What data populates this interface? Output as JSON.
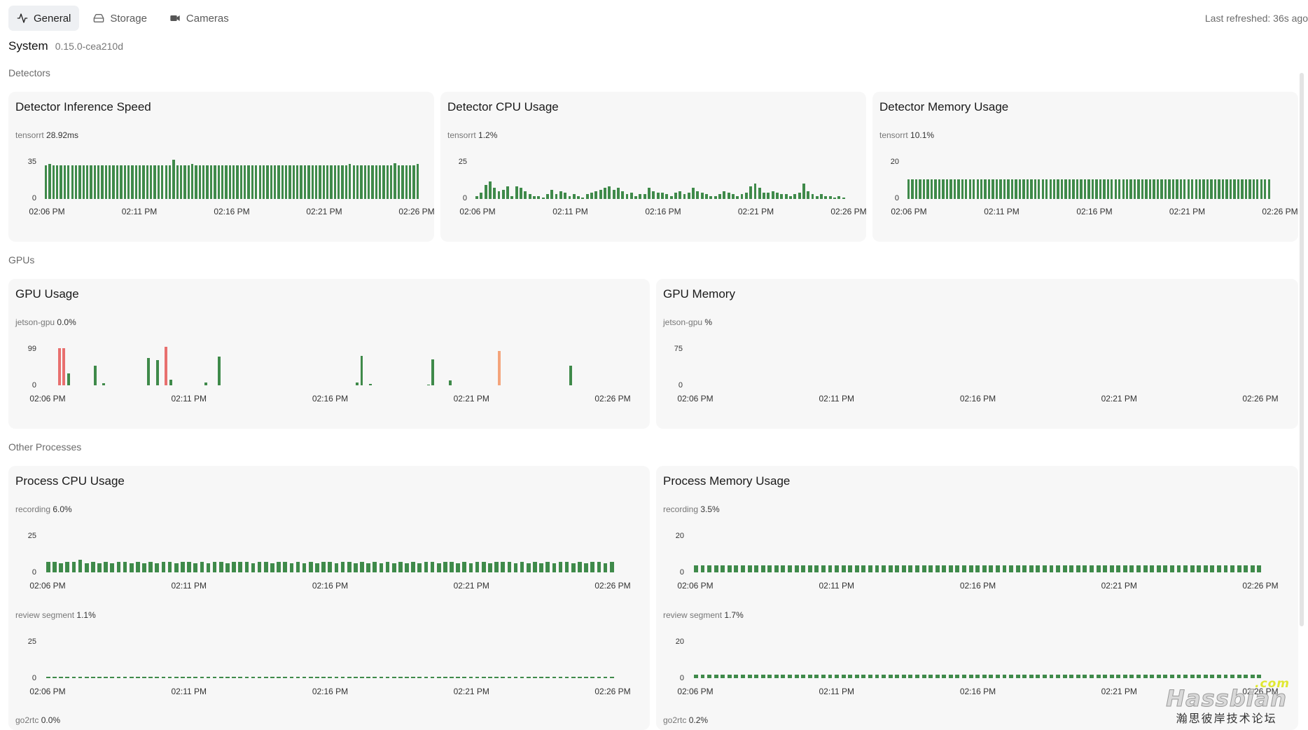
{
  "tabs": [
    {
      "label": "General",
      "icon": "activity-icon",
      "active": true
    },
    {
      "label": "Storage",
      "icon": "hard-drive-icon",
      "active": false
    },
    {
      "label": "Cameras",
      "icon": "video-camera-icon",
      "active": false
    }
  ],
  "last_refreshed": "Last refreshed: 36s ago",
  "system": {
    "title": "System",
    "version": "0.15.0-cea210d"
  },
  "sections": {
    "detectors": "Detectors",
    "gpus": "GPUs",
    "other": "Other Processes"
  },
  "x_ticks": [
    "02:06 PM",
    "02:11 PM",
    "02:16 PM",
    "02:21 PM",
    "02:26 PM"
  ],
  "colors": {
    "bar": "#3f8a4a",
    "warn": "#e8706f",
    "orange": "#f4a57c"
  },
  "cards": {
    "inference": {
      "title": "Detector Inference Speed",
      "series": "tensorrt",
      "value": "28.92ms",
      "ymax": "35",
      "ymin": "0",
      "chart_data": {
        "type": "bar",
        "ylim": [
          0,
          35
        ],
        "values": [
          30,
          31,
          30,
          30,
          30,
          30,
          30,
          30,
          30,
          30,
          30,
          30,
          30,
          30,
          30,
          30,
          30,
          30,
          30,
          30,
          30,
          30,
          30,
          30,
          30,
          30,
          30,
          30,
          30,
          30,
          30,
          30,
          30,
          30,
          35,
          30,
          30,
          30,
          30,
          31,
          30,
          30,
          30,
          30,
          30,
          30,
          30,
          30,
          30,
          30,
          30,
          30,
          30,
          30,
          30,
          30,
          30,
          30,
          30,
          30,
          30,
          30,
          30,
          30,
          30,
          30,
          30,
          30,
          30,
          30,
          30,
          30,
          30,
          30,
          30,
          30,
          30,
          30,
          30,
          30,
          30,
          31,
          30,
          30,
          30,
          30,
          30,
          30,
          30,
          30,
          30,
          30,
          30,
          32,
          30,
          30,
          30,
          30,
          30,
          31
        ]
      }
    },
    "cpu": {
      "title": "Detector CPU Usage",
      "series": "tensorrt",
      "value": "1.2%",
      "ymax": "25",
      "ymin": "0",
      "chart_data": {
        "type": "bar",
        "ylim": [
          0,
          25
        ],
        "values": [
          2,
          4,
          9,
          11,
          7,
          5,
          6,
          8,
          2,
          8,
          7,
          5,
          3,
          2,
          2,
          1,
          3,
          6,
          3,
          5,
          4,
          2,
          3,
          2,
          1,
          3,
          4,
          5,
          6,
          7,
          8,
          6,
          7,
          5,
          3,
          4,
          2,
          3,
          3,
          7,
          5,
          4,
          4,
          3,
          2,
          4,
          5,
          3,
          4,
          7,
          5,
          4,
          3,
          2,
          2,
          3,
          5,
          4,
          3,
          2,
          3,
          4,
          8,
          10,
          7,
          4,
          4,
          5,
          4,
          3,
          3,
          2,
          3,
          4,
          10,
          5,
          3,
          2,
          3,
          2,
          2,
          1,
          2,
          1
        ]
      }
    },
    "memory": {
      "title": "Detector Memory Usage",
      "series": "tensorrt",
      "value": "10.1%",
      "ymax": "20",
      "ymin": "0",
      "chart_data": {
        "type": "bar",
        "ylim": [
          0,
          20
        ],
        "values": [
          10,
          10,
          10,
          10,
          10,
          10,
          10,
          10,
          10,
          10,
          10,
          10,
          10,
          10,
          10,
          10,
          10,
          10,
          10,
          10,
          10,
          10,
          10,
          10,
          10,
          10,
          10,
          10,
          10,
          10,
          10,
          10,
          10,
          10,
          10,
          10,
          10,
          10,
          10,
          10,
          10,
          10,
          10,
          10,
          10,
          10,
          10,
          10,
          10,
          10,
          10,
          10,
          10,
          10,
          10,
          10,
          10,
          10,
          10,
          10,
          10,
          10,
          10,
          10,
          10,
          10,
          10,
          10,
          10,
          10,
          10,
          10,
          10,
          10,
          10,
          10,
          10,
          10,
          10,
          10,
          10,
          10,
          10,
          10,
          10,
          10,
          10,
          10,
          10,
          10,
          10,
          10,
          10,
          10,
          10
        ]
      }
    },
    "gpu_usage": {
      "title": "GPU Usage",
      "series": "jetson-gpu",
      "value": "0.0%",
      "ymax": "99",
      "ymin": "0",
      "chart_data": {
        "type": "bar",
        "ylim": [
          0,
          99
        ],
        "values": [
          0,
          0,
          0,
          95,
          95,
          30,
          0,
          0,
          0,
          0,
          0,
          50,
          0,
          6,
          0,
          0,
          0,
          0,
          0,
          0,
          0,
          0,
          0,
          70,
          0,
          65,
          0,
          99,
          14,
          0,
          0,
          0,
          0,
          0,
          0,
          0,
          8,
          0,
          0,
          73,
          0,
          0,
          0,
          0,
          0,
          0,
          0,
          0,
          0,
          0,
          0,
          0,
          0,
          0,
          0,
          0,
          0,
          0,
          0,
          0,
          0,
          0,
          0,
          0,
          0,
          0,
          0,
          0,
          0,
          0,
          8,
          75,
          0,
          3,
          0,
          0,
          0,
          0,
          0,
          0,
          0,
          0,
          0,
          0,
          0,
          0,
          2,
          66,
          0,
          0,
          0,
          12,
          0,
          0,
          0,
          0,
          0,
          0,
          0,
          0,
          0,
          0,
          88,
          0,
          0,
          0,
          0,
          0,
          0,
          0,
          0,
          0,
          0,
          0,
          0,
          0,
          0,
          0,
          50,
          0,
          0,
          0,
          0,
          0,
          0,
          0,
          0,
          0,
          0,
          0,
          0,
          0,
          0
        ]
      }
    },
    "gpu_memory": {
      "title": "GPU Memory",
      "series": "jetson-gpu",
      "value": "%",
      "ymax": "75",
      "ymin": "0",
      "chart_data": {
        "type": "bar",
        "ylim": [
          0,
          75
        ],
        "values": []
      }
    },
    "proc_cpu": {
      "title": "Process CPU Usage",
      "series": [
        {
          "name": "recording",
          "value": "6.0%",
          "ymax": "25",
          "ymin": "0",
          "values": [
            7,
            7,
            6,
            7,
            7,
            8,
            6,
            7,
            6,
            7,
            6,
            7,
            7,
            6,
            7,
            6,
            7,
            6,
            7,
            7,
            6,
            7,
            7,
            6,
            7,
            6,
            7,
            7,
            6,
            7,
            7,
            7,
            6,
            7,
            7,
            6,
            7,
            7,
            6,
            7,
            6,
            7,
            6,
            7,
            7,
            6,
            7,
            7,
            6,
            7,
            6,
            7,
            6,
            7,
            6,
            7,
            6,
            7,
            6,
            7,
            7,
            6,
            7,
            7,
            6,
            7,
            6,
            7,
            7,
            6,
            7,
            7,
            7,
            6,
            7,
            6,
            7,
            6,
            7,
            6,
            7,
            7,
            6,
            7,
            6,
            7,
            7,
            6,
            7
          ]
        },
        {
          "name": "review segment",
          "value": "1.1%",
          "ymax": "25",
          "ymin": "0",
          "values": [
            1,
            1,
            1,
            1,
            1,
            1,
            1,
            1,
            1,
            1,
            1,
            1,
            1,
            1,
            1,
            1,
            1,
            1,
            1,
            1,
            1,
            1,
            1,
            1,
            1,
            1,
            1,
            1,
            1,
            1,
            1,
            1,
            1,
            1,
            1,
            1,
            1,
            1,
            1,
            1,
            1,
            1,
            1,
            1,
            1,
            1,
            1,
            1,
            1,
            1,
            1,
            1,
            1,
            1,
            1,
            1,
            1,
            1,
            1,
            1,
            1,
            1,
            1,
            1,
            1,
            1,
            1,
            1,
            1,
            1,
            1,
            1,
            1,
            1,
            1,
            1,
            1,
            1,
            1,
            1,
            1,
            1,
            1,
            1,
            1,
            1,
            1,
            1,
            1
          ]
        },
        {
          "name": "go2rtc",
          "value": "0.0%",
          "ymax": "",
          "ymin": "",
          "values": []
        }
      ]
    },
    "proc_mem": {
      "title": "Process Memory Usage",
      "series": [
        {
          "name": "recording",
          "value": "3.5%",
          "ymax": "20",
          "ymin": "0",
          "values": [
            3.5,
            3.5,
            3.5,
            3.5,
            3.5,
            3.5,
            3.5,
            3.5,
            3.5,
            3.5,
            3.5,
            3.5,
            3.5,
            3.5,
            3.5,
            3.5,
            3.5,
            3.5,
            3.5,
            3.5,
            3.5,
            3.5,
            3.5,
            3.5,
            3.5,
            3.5,
            3.5,
            3.5,
            3.5,
            3.5,
            3.5,
            3.5,
            3.5,
            3.5,
            3.5,
            3.5,
            3.5,
            3.5,
            3.5,
            3.5,
            3.5,
            3.5,
            3.5,
            3.5,
            3.5,
            3.5,
            3.5,
            3.5,
            3.5,
            3.5,
            3.5,
            3.5,
            3.5,
            3.5,
            3.5,
            3.5,
            3.5,
            3.5,
            3.5,
            3.5,
            3.5,
            3.5,
            3.5,
            3.5,
            3.5,
            3.5,
            3.5,
            3.5,
            3.5,
            3.5,
            3.5,
            3.5,
            3.5,
            3.5,
            3.5,
            3.5,
            3.5,
            3.5,
            3.5,
            3.5,
            3.5,
            3.5,
            3.5,
            3.5,
            3.5
          ]
        },
        {
          "name": "review segment",
          "value": "1.7%",
          "ymax": "20",
          "ymin": "0",
          "values": [
            1.7,
            1.7,
            1.7,
            1.7,
            1.7,
            1.7,
            1.7,
            1.7,
            1.7,
            1.7,
            1.7,
            1.7,
            1.7,
            1.7,
            1.7,
            1.7,
            1.7,
            1.7,
            1.7,
            1.7,
            1.7,
            1.7,
            1.7,
            1.7,
            1.7,
            1.7,
            1.7,
            1.7,
            1.7,
            1.7,
            1.7,
            1.7,
            1.7,
            1.7,
            1.7,
            1.7,
            1.7,
            1.7,
            1.7,
            1.7,
            1.7,
            1.7,
            1.7,
            1.7,
            1.7,
            1.7,
            1.7,
            1.7,
            1.7,
            1.7,
            1.7,
            1.7,
            1.7,
            1.7,
            1.7,
            1.7,
            1.7,
            1.7,
            1.7,
            1.7,
            1.7,
            1.7,
            1.7,
            1.7,
            1.7,
            1.7,
            1.7,
            1.7,
            1.7,
            1.7,
            1.7,
            1.7,
            1.7,
            1.7,
            1.7,
            1.7,
            1.7,
            1.7,
            1.7,
            1.7,
            1.7,
            1.7,
            1.7,
            1.7,
            1.7
          ]
        },
        {
          "name": "go2rtc",
          "value": "0.2%",
          "ymax": "",
          "ymin": "",
          "values": []
        }
      ]
    }
  },
  "watermark": {
    "logo": "Hassbian",
    "com": ".com",
    "cn": "瀚思彼岸技术论坛"
  }
}
